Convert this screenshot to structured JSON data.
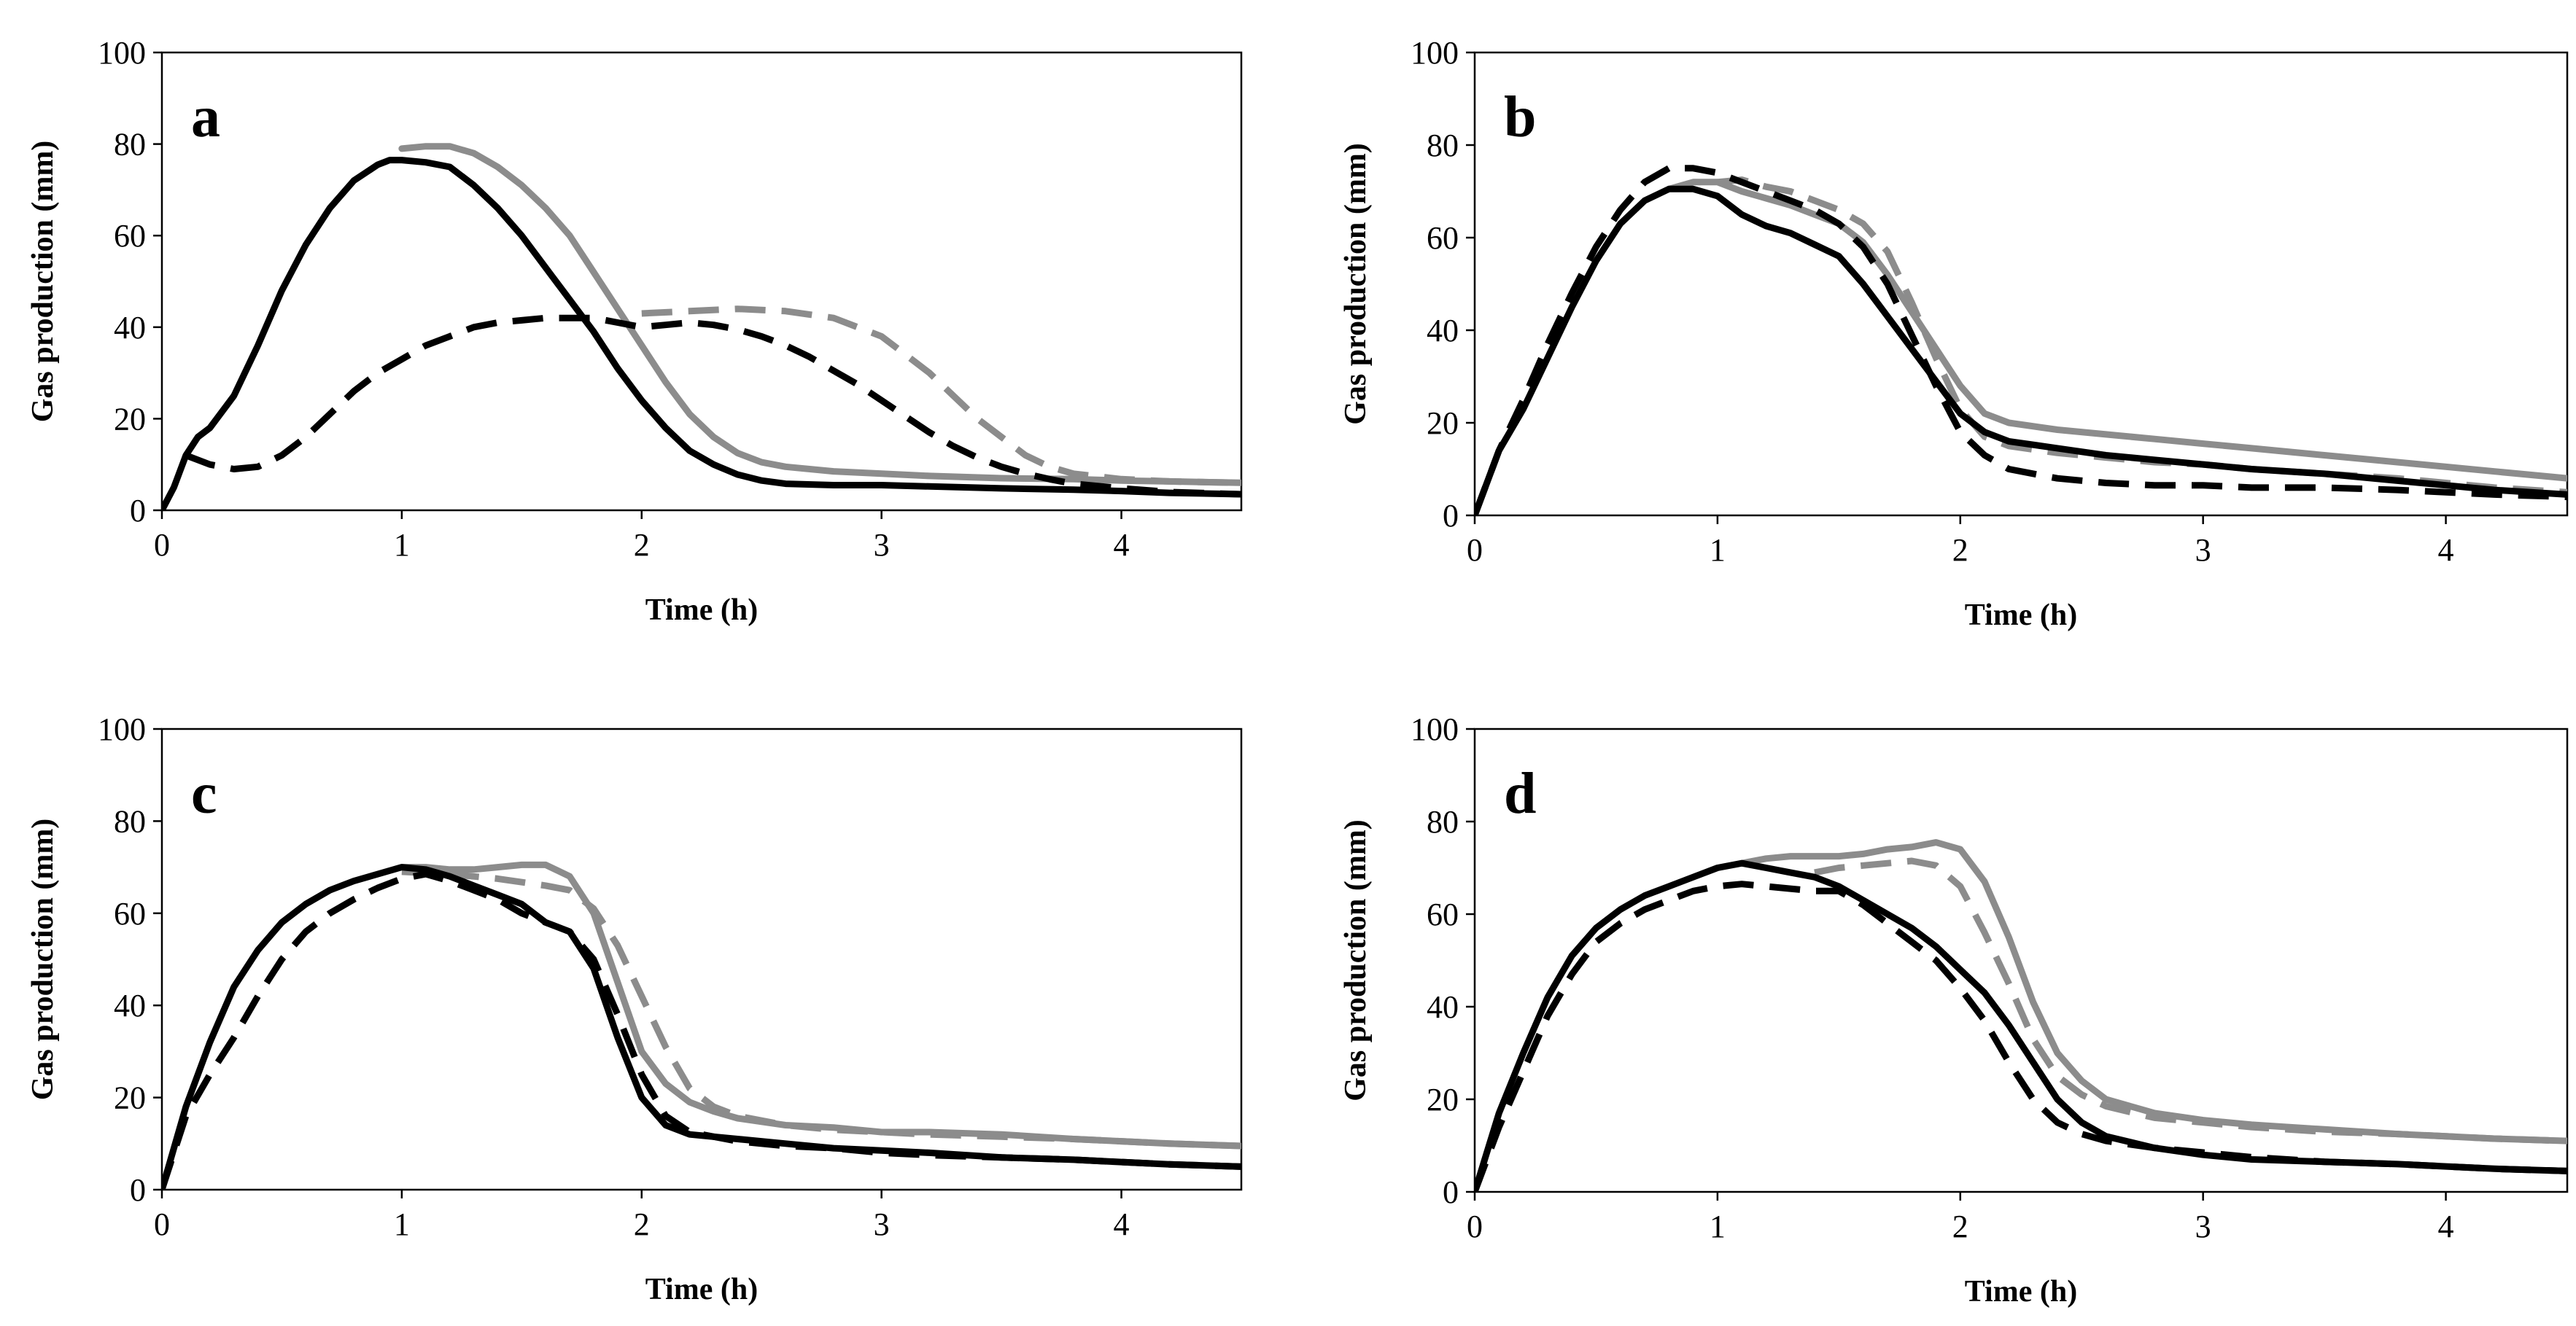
{
  "figure": {
    "colors": {
      "black": "#000000",
      "gray": "#8c8c8c"
    }
  },
  "chart_data": [
    {
      "type": "line",
      "panel": "a",
      "xlabel": "Time (h)",
      "ylabel": "Gas production (mm)",
      "xlim": [
        0,
        4.5
      ],
      "ylim": [
        0,
        100
      ],
      "xticks": [
        "0",
        "1",
        "2",
        "3",
        "4"
      ],
      "yticks": [
        "0",
        "20",
        "40",
        "60",
        "80",
        "100"
      ],
      "grid": false,
      "series": [
        {
          "name": "black-solid",
          "color": "#000000",
          "dash": false,
          "x": [
            0,
            0.05,
            0.1,
            0.15,
            0.2,
            0.3,
            0.4,
            0.5,
            0.6,
            0.7,
            0.8,
            0.9,
            0.95,
            1.0,
            1.1,
            1.2,
            1.3,
            1.4,
            1.5,
            1.6,
            1.7,
            1.8,
            1.9,
            2.0,
            2.1,
            2.2,
            2.3,
            2.4,
            2.5,
            2.6,
            2.8,
            3.0,
            3.2,
            3.5,
            3.8,
            4.0,
            4.2,
            4.5
          ],
          "y": [
            0,
            5,
            12,
            16,
            18,
            25,
            36,
            48,
            58,
            66,
            72,
            75.5,
            76.5,
            76.5,
            76,
            75,
            71,
            66,
            60,
            53,
            46,
            39,
            31,
            24,
            18,
            13,
            10,
            7.8,
            6.5,
            5.8,
            5.5,
            5.5,
            5.2,
            4.8,
            4.5,
            4.2,
            3.8,
            3.5
          ]
        },
        {
          "name": "gray-solid",
          "color": "#8c8c8c",
          "dash": false,
          "x": [
            1.0,
            1.1,
            1.2,
            1.3,
            1.4,
            1.5,
            1.6,
            1.7,
            1.8,
            1.9,
            2.0,
            2.1,
            2.2,
            2.3,
            2.4,
            2.5,
            2.6,
            2.8,
            3.0,
            3.2,
            3.5,
            3.8,
            4.0,
            4.2,
            4.5
          ],
          "y": [
            79,
            79.5,
            79.5,
            78,
            75,
            71,
            66,
            60,
            52,
            44,
            36,
            28,
            21,
            16,
            12.5,
            10.5,
            9.5,
            8.5,
            8,
            7.5,
            7,
            6.8,
            6.5,
            6.3,
            6
          ]
        },
        {
          "name": "black-dashed",
          "color": "#000000",
          "dash": true,
          "x": [
            0.1,
            0.2,
            0.3,
            0.4,
            0.5,
            0.6,
            0.7,
            0.8,
            0.9,
            1.0,
            1.1,
            1.2,
            1.3,
            1.4,
            1.5,
            1.6,
            1.7,
            1.8,
            1.9,
            2.0,
            2.1,
            2.2,
            2.3,
            2.4,
            2.5,
            2.6,
            2.7,
            2.8,
            2.9,
            3.0,
            3.1,
            3.2,
            3.3,
            3.4,
            3.5,
            3.6,
            3.7,
            3.8,
            4.0,
            4.2,
            4.5
          ],
          "y": [
            12,
            10,
            9,
            9.5,
            12,
            16,
            21,
            26,
            30,
            33,
            36,
            38,
            40,
            41,
            41.5,
            42,
            42,
            42,
            41,
            40,
            40.5,
            41,
            40.5,
            39.5,
            38,
            36,
            33.5,
            30.5,
            27.5,
            24,
            20.5,
            17,
            14,
            11.5,
            9.5,
            8,
            6.8,
            5.8,
            4.8,
            4,
            3.5
          ]
        },
        {
          "name": "gray-dashed",
          "color": "#8c8c8c",
          "dash": true,
          "x": [
            2.0,
            2.2,
            2.4,
            2.6,
            2.8,
            3.0,
            3.1,
            3.2,
            3.3,
            3.4,
            3.5,
            3.6,
            3.7,
            3.8,
            4.0,
            4.2,
            4.5
          ],
          "y": [
            43,
            43.5,
            44,
            43.5,
            42,
            38,
            34,
            30,
            25,
            20,
            16,
            12,
            9.5,
            8,
            6.8,
            6.3,
            6
          ]
        }
      ]
    },
    {
      "type": "line",
      "panel": "b",
      "xlabel": "Time (h)",
      "ylabel": "Gas production (mm)",
      "xlim": [
        0,
        4.5
      ],
      "ylim": [
        0,
        100
      ],
      "xticks": [
        "0",
        "1",
        "2",
        "3",
        "4"
      ],
      "yticks": [
        "0",
        "20",
        "40",
        "60",
        "80",
        "100"
      ],
      "grid": false,
      "series": [
        {
          "name": "black-solid",
          "color": "#000000",
          "dash": false,
          "x": [
            0,
            0.1,
            0.2,
            0.3,
            0.4,
            0.5,
            0.6,
            0.7,
            0.8,
            0.9,
            1.0,
            1.1,
            1.2,
            1.3,
            1.4,
            1.5,
            1.6,
            1.7,
            1.8,
            1.9,
            2.0,
            2.1,
            2.2,
            2.4,
            2.6,
            2.8,
            3.0,
            3.2,
            3.5,
            3.8,
            4.0,
            4.2,
            4.5
          ],
          "y": [
            0,
            14,
            23,
            34,
            45,
            55,
            63,
            68,
            70.5,
            70.5,
            69,
            65,
            62.5,
            61,
            58.5,
            56,
            50,
            43,
            36,
            29,
            22,
            18,
            16,
            14.5,
            13,
            12,
            11,
            10,
            9,
            7.5,
            6.5,
            5.5,
            4.5
          ]
        },
        {
          "name": "gray-solid",
          "color": "#8c8c8c",
          "dash": false,
          "x": [
            0.8,
            0.9,
            1.0,
            1.1,
            1.2,
            1.3,
            1.4,
            1.5,
            1.6,
            1.7,
            1.8,
            1.9,
            2.0,
            2.1,
            2.2,
            2.4,
            2.6,
            2.8,
            3.0,
            3.2,
            3.5,
            3.8,
            4.0,
            4.2,
            4.5
          ],
          "y": [
            70.5,
            72,
            72,
            70,
            68.5,
            67,
            65,
            63,
            59,
            52,
            44,
            36,
            28,
            22,
            20,
            18.5,
            17.5,
            16.5,
            15.5,
            14.5,
            13,
            11.5,
            10.5,
            9.5,
            8
          ]
        },
        {
          "name": "black-dashed",
          "color": "#000000",
          "dash": true,
          "x": [
            0,
            0.1,
            0.2,
            0.3,
            0.4,
            0.5,
            0.6,
            0.7,
            0.8,
            0.9,
            1.0,
            1.1,
            1.2,
            1.3,
            1.4,
            1.5,
            1.6,
            1.7,
            1.8,
            1.9,
            2.0,
            2.1,
            2.2,
            2.4,
            2.6,
            2.8,
            3.0,
            3.2,
            3.5,
            3.8,
            4.0,
            4.2,
            4.5
          ],
          "y": [
            0,
            14,
            25,
            37,
            48,
            58,
            66,
            72,
            75,
            75,
            74,
            72,
            70,
            68,
            66,
            63,
            58,
            50,
            39,
            28,
            18,
            13,
            10,
            8,
            7,
            6.5,
            6.5,
            6,
            6,
            5.5,
            5,
            4.5,
            4
          ]
        },
        {
          "name": "gray-dashed",
          "color": "#8c8c8c",
          "dash": true,
          "x": [
            1.0,
            1.1,
            1.2,
            1.3,
            1.4,
            1.5,
            1.6,
            1.7,
            1.8,
            1.9,
            2.0,
            2.1,
            2.2,
            2.4,
            2.6,
            2.8,
            3.0,
            3.2,
            3.5,
            3.8,
            4.0,
            4.2,
            4.5
          ],
          "y": [
            72,
            72.5,
            71,
            70,
            68,
            66,
            63,
            57,
            46,
            34,
            23,
            17,
            15,
            13.5,
            12.5,
            11.5,
            11,
            10,
            9,
            8,
            7,
            6,
            5
          ]
        }
      ]
    },
    {
      "type": "line",
      "panel": "c",
      "xlabel": "Time (h)",
      "ylabel": "Gas production (mm)",
      "xlim": [
        0,
        4.5
      ],
      "ylim": [
        0,
        100
      ],
      "xticks": [
        "0",
        "1",
        "2",
        "3",
        "4"
      ],
      "yticks": [
        "0",
        "20",
        "40",
        "60",
        "80",
        "100"
      ],
      "grid": false,
      "series": [
        {
          "name": "black-solid",
          "color": "#000000",
          "dash": false,
          "x": [
            0,
            0.1,
            0.2,
            0.3,
            0.4,
            0.5,
            0.6,
            0.7,
            0.8,
            0.9,
            1.0,
            1.1,
            1.2,
            1.3,
            1.4,
            1.5,
            1.6,
            1.7,
            1.8,
            1.9,
            2.0,
            2.1,
            2.2,
            2.4,
            2.6,
            2.8,
            3.0,
            3.2,
            3.5,
            3.8,
            4.0,
            4.2,
            4.5
          ],
          "y": [
            0,
            18,
            32,
            44,
            52,
            58,
            62,
            65,
            67,
            68.5,
            70,
            69.5,
            68,
            66,
            64,
            62,
            58,
            56,
            48,
            33,
            20,
            14,
            12,
            11,
            10,
            9,
            8.5,
            8,
            7,
            6.5,
            6,
            5.5,
            5
          ]
        },
        {
          "name": "gray-solid",
          "color": "#8c8c8c",
          "dash": false,
          "x": [
            1.0,
            1.1,
            1.2,
            1.3,
            1.4,
            1.5,
            1.6,
            1.7,
            1.8,
            1.9,
            2.0,
            2.1,
            2.2,
            2.3,
            2.4,
            2.6,
            2.8,
            3.0,
            3.2,
            3.5,
            3.8,
            4.0,
            4.2,
            4.5
          ],
          "y": [
            70,
            70,
            69.5,
            69.5,
            70,
            70.5,
            70.5,
            68,
            60,
            45,
            30,
            23,
            19,
            17,
            15.5,
            14,
            13.5,
            12.5,
            12.5,
            12,
            11,
            10.5,
            10,
            9.5
          ]
        },
        {
          "name": "black-dashed",
          "color": "#000000",
          "dash": true,
          "x": [
            0,
            0.1,
            0.2,
            0.3,
            0.4,
            0.5,
            0.6,
            0.7,
            0.8,
            0.9,
            1.0,
            1.1,
            1.2,
            1.3,
            1.4,
            1.5,
            1.6,
            1.7,
            1.8,
            1.9,
            2.0,
            2.1,
            2.2,
            2.4,
            2.6,
            2.8,
            3.0,
            3.2,
            3.5,
            3.8,
            4.0,
            4.2,
            4.5
          ],
          "y": [
            0,
            16,
            25,
            33,
            42,
            50,
            56,
            60,
            63,
            65.5,
            67.5,
            68.5,
            67,
            65,
            63,
            60,
            58,
            56,
            50,
            38,
            25,
            16,
            12.5,
            10.5,
            9.5,
            9,
            8,
            7.5,
            7,
            6.5,
            6,
            5.5,
            5
          ]
        },
        {
          "name": "gray-dashed",
          "color": "#8c8c8c",
          "dash": true,
          "x": [
            1.0,
            1.2,
            1.4,
            1.6,
            1.7,
            1.8,
            1.9,
            2.0,
            2.1,
            2.2,
            2.3,
            2.4,
            2.6,
            2.8,
            3.0,
            3.2,
            3.5,
            3.8,
            4.0,
            4.2,
            4.5
          ],
          "y": [
            69,
            68.5,
            67.5,
            66,
            65,
            61,
            53,
            42,
            31,
            22,
            18,
            16,
            14,
            13,
            12.5,
            12,
            11.5,
            11,
            10.5,
            10,
            9.5
          ]
        }
      ]
    },
    {
      "type": "line",
      "panel": "d",
      "xlabel": "Time (h)",
      "ylabel": "Gas production (mm)",
      "xlim": [
        0,
        4.5
      ],
      "ylim": [
        0,
        100
      ],
      "xticks": [
        "0",
        "1",
        "2",
        "3",
        "4"
      ],
      "yticks": [
        "0",
        "20",
        "40",
        "60",
        "80",
        "100"
      ],
      "grid": false,
      "series": [
        {
          "name": "black-solid",
          "color": "#000000",
          "dash": false,
          "x": [
            0,
            0.1,
            0.2,
            0.3,
            0.4,
            0.5,
            0.6,
            0.7,
            0.8,
            0.9,
            1.0,
            1.1,
            1.2,
            1.3,
            1.4,
            1.5,
            1.6,
            1.7,
            1.8,
            1.9,
            2.0,
            2.1,
            2.2,
            2.3,
            2.4,
            2.5,
            2.6,
            2.8,
            3.0,
            3.2,
            3.5,
            3.8,
            4.0,
            4.2,
            4.5
          ],
          "y": [
            0,
            17,
            30,
            42,
            51,
            57,
            61,
            64,
            66,
            68,
            70,
            71,
            70,
            69,
            68,
            66,
            63,
            60,
            57,
            53,
            48,
            43,
            36,
            28,
            20,
            15,
            12,
            9.5,
            8,
            7,
            6.5,
            6,
            5.5,
            5,
            4.5
          ]
        },
        {
          "name": "gray-solid",
          "color": "#8c8c8c",
          "dash": false,
          "x": [
            1.1,
            1.2,
            1.3,
            1.4,
            1.5,
            1.6,
            1.7,
            1.8,
            1.9,
            2.0,
            2.1,
            2.2,
            2.3,
            2.4,
            2.5,
            2.6,
            2.8,
            3.0,
            3.2,
            3.5,
            3.8,
            4.0,
            4.2,
            4.5
          ],
          "y": [
            71,
            72,
            72.5,
            72.5,
            72.5,
            73,
            74,
            74.5,
            75.5,
            74,
            67,
            55,
            41,
            30,
            24,
            20,
            17,
            15.5,
            14.5,
            13.5,
            12.5,
            12,
            11.5,
            11
          ]
        },
        {
          "name": "black-dashed",
          "color": "#000000",
          "dash": true,
          "x": [
            0,
            0.1,
            0.2,
            0.3,
            0.4,
            0.5,
            0.6,
            0.7,
            0.8,
            0.9,
            1.0,
            1.1,
            1.2,
            1.3,
            1.4,
            1.5,
            1.6,
            1.7,
            1.8,
            1.9,
            2.0,
            2.1,
            2.2,
            2.3,
            2.4,
            2.5,
            2.6,
            2.8,
            3.0,
            3.2,
            3.5,
            3.8,
            4.0,
            4.2,
            4.5
          ],
          "y": [
            0,
            14,
            26,
            38,
            47,
            54,
            58,
            61,
            63,
            65,
            66,
            66.5,
            66,
            65.5,
            65,
            65,
            62,
            58,
            54,
            50,
            44,
            37,
            28,
            20,
            15,
            12.5,
            11,
            9.5,
            8.5,
            7.5,
            6.5,
            6,
            5.5,
            5,
            4.5
          ]
        },
        {
          "name": "gray-dashed",
          "color": "#8c8c8c",
          "dash": true,
          "x": [
            1.4,
            1.5,
            1.6,
            1.7,
            1.8,
            1.9,
            2.0,
            2.1,
            2.2,
            2.3,
            2.4,
            2.5,
            2.6,
            2.8,
            3.0,
            3.2,
            3.5,
            3.8,
            4.0,
            4.2,
            4.5
          ],
          "y": [
            69,
            70,
            70.5,
            71,
            71.5,
            70.5,
            66,
            56,
            45,
            33,
            25,
            21,
            18.5,
            16,
            15,
            14,
            13,
            12.5,
            12,
            11.5,
            11
          ]
        }
      ]
    }
  ]
}
